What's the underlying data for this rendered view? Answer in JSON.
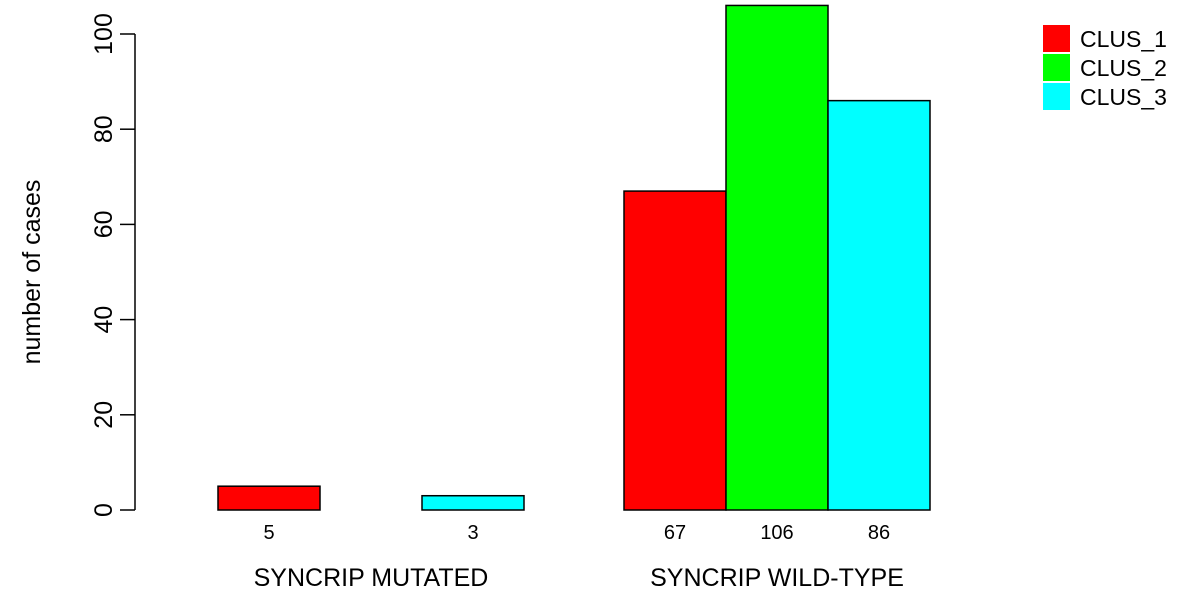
{
  "chart_data": {
    "type": "bar",
    "ylabel": "number of cases",
    "ylim": [
      0,
      106
    ],
    "yticks": [
      0,
      20,
      40,
      60,
      80,
      100
    ],
    "groups": [
      {
        "label": "SYNCRIP MUTATED",
        "values": [
          5,
          0,
          3
        ],
        "value_labels": [
          "5",
          "",
          "3"
        ]
      },
      {
        "label": "SYNCRIP WILD-TYPE",
        "values": [
          67,
          106,
          86
        ],
        "value_labels": [
          "67",
          "106",
          "86"
        ]
      }
    ],
    "series": [
      {
        "name": "CLUS_1",
        "color": "#ff0000"
      },
      {
        "name": "CLUS_2",
        "color": "#00ff00"
      },
      {
        "name": "CLUS_3",
        "color": "#00ffff"
      }
    ],
    "legend_position": "top-right"
  }
}
